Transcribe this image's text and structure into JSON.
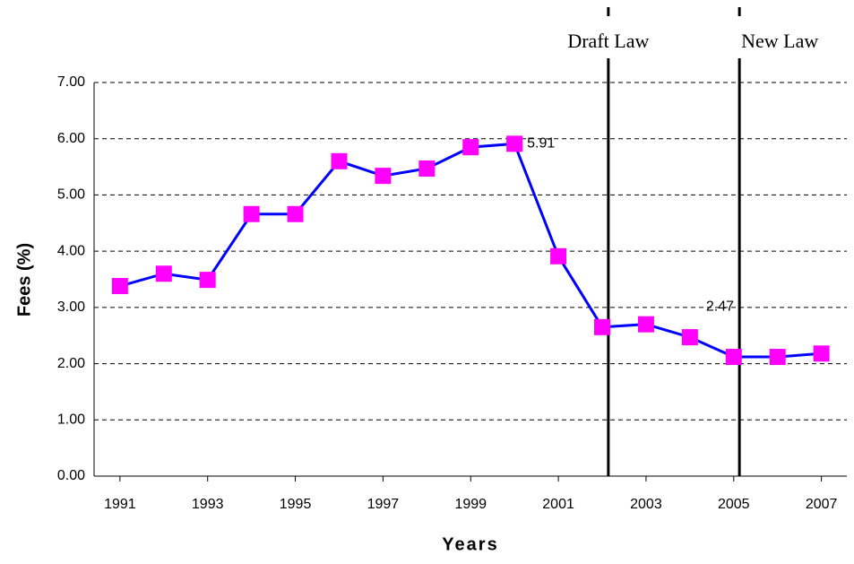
{
  "chart_data": {
    "type": "line",
    "x": [
      1991,
      1992,
      1993,
      1994,
      1995,
      1996,
      1997,
      1998,
      1999,
      2000,
      2001,
      2002,
      2003,
      2004,
      2005,
      2006,
      2007
    ],
    "series": [
      {
        "name": "Fees",
        "color": "#0000ff",
        "marker_color": "#ff00ff",
        "values": [
          3.38,
          3.6,
          3.49,
          4.66,
          4.66,
          5.6,
          5.34,
          5.47,
          5.85,
          5.91,
          3.91,
          2.65,
          2.7,
          2.47,
          2.12,
          2.12,
          2.18
        ],
        "value_labels": [
          null,
          null,
          null,
          null,
          null,
          null,
          null,
          null,
          null,
          "5.91",
          null,
          null,
          null,
          "2.47",
          null,
          null,
          null
        ]
      }
    ],
    "xlabel": "Years",
    "ylabel": "Fees (%)",
    "xlim": [
      1990.41,
      2007.58
    ],
    "xticks": [
      1991,
      1993,
      1995,
      1997,
      1999,
      2001,
      2003,
      2005,
      2007
    ],
    "ylim": [
      0,
      7
    ],
    "yticks": [
      {
        "value": 0,
        "label": "0.00"
      },
      {
        "value": 1,
        "label": "1.00"
      },
      {
        "value": 2,
        "label": "2.00"
      },
      {
        "value": 3,
        "label": "3.00"
      },
      {
        "value": 4,
        "label": "4.00"
      },
      {
        "value": 5,
        "label": "5.00"
      },
      {
        "value": 6,
        "label": "6.00"
      },
      {
        "value": 7,
        "label": "7.00"
      }
    ],
    "grid": true,
    "annotations": [
      {
        "x": 2002.14,
        "text": "Draft Law"
      },
      {
        "x": 2005.13,
        "text": "New Law"
      }
    ]
  }
}
